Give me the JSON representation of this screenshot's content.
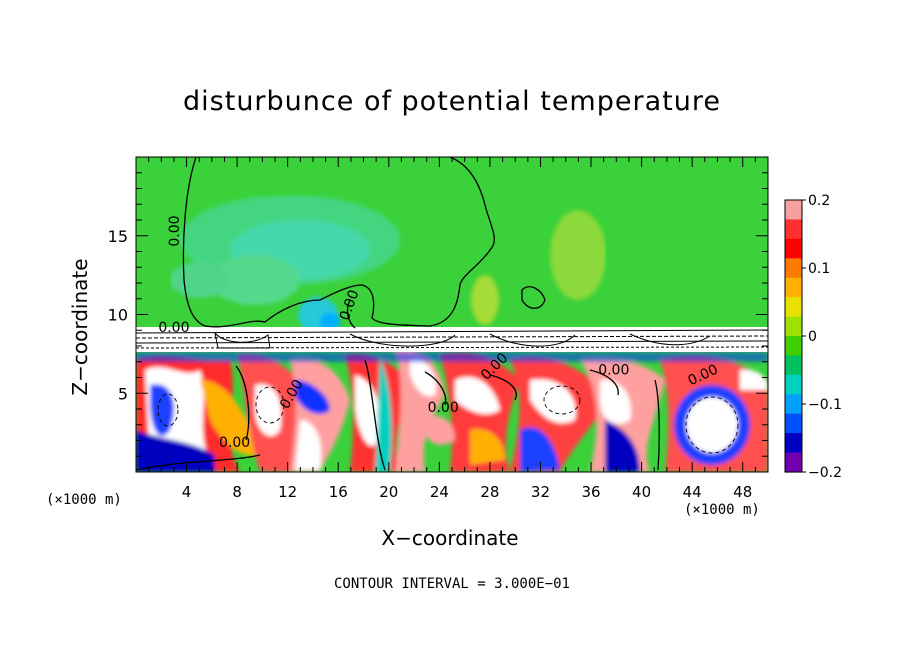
{
  "chart_data": {
    "type": "heatmap",
    "title": "disturbunce of potential temperature",
    "xlabel": "X−coordinate",
    "ylabel": "Z−coordinate",
    "x_unit_label": "(×1000 m)",
    "x_ticks": [
      4,
      8,
      12,
      16,
      20,
      24,
      28,
      32,
      36,
      40,
      44,
      48
    ],
    "y_ticks": [
      5,
      10,
      15
    ],
    "xlim": [
      0,
      50
    ],
    "ylim": [
      0,
      20
    ],
    "colorbar": {
      "ticks": [
        "0.2",
        "0.1",
        "0",
        "−0.1",
        "−0.2"
      ],
      "range": [
        -0.2,
        0.2
      ],
      "colors": [
        "#f7a0a0",
        "#ff3030",
        "#ff0000",
        "#ff7a00",
        "#ffb000",
        "#e8e000",
        "#a0e000",
        "#40d000",
        "#00c060",
        "#00d0c0",
        "#00a0ff",
        "#0050ff",
        "#0000c0",
        "#7000b0"
      ]
    },
    "contour_labels": [
      {
        "text": "0.00",
        "x": 3.4,
        "y": 15.3,
        "angle": -90
      },
      {
        "text": "0.00",
        "x": 17.2,
        "y": 10.5,
        "angle": -70
      },
      {
        "text": "0.00",
        "x": 3.0,
        "y": 8.9,
        "angle": 0
      },
      {
        "text": "0.00",
        "x": 28.6,
        "y": 6.5,
        "angle": -45
      },
      {
        "text": "0.00",
        "x": 37.8,
        "y": 6.2,
        "angle": 0
      },
      {
        "text": "0.00",
        "x": 45.0,
        "y": 5.9,
        "angle": -25
      },
      {
        "text": "0.00",
        "x": 12.6,
        "y": 4.8,
        "angle": -60
      },
      {
        "text": "0.00",
        "x": 24.3,
        "y": 3.8,
        "angle": 0
      },
      {
        "text": "0.00",
        "x": 7.8,
        "y": 1.6,
        "angle": 0
      }
    ],
    "contour_interval_text": "CONTOUR INTERVAL = 3.000E−01",
    "grid": false,
    "legend": "colorbar-right"
  }
}
